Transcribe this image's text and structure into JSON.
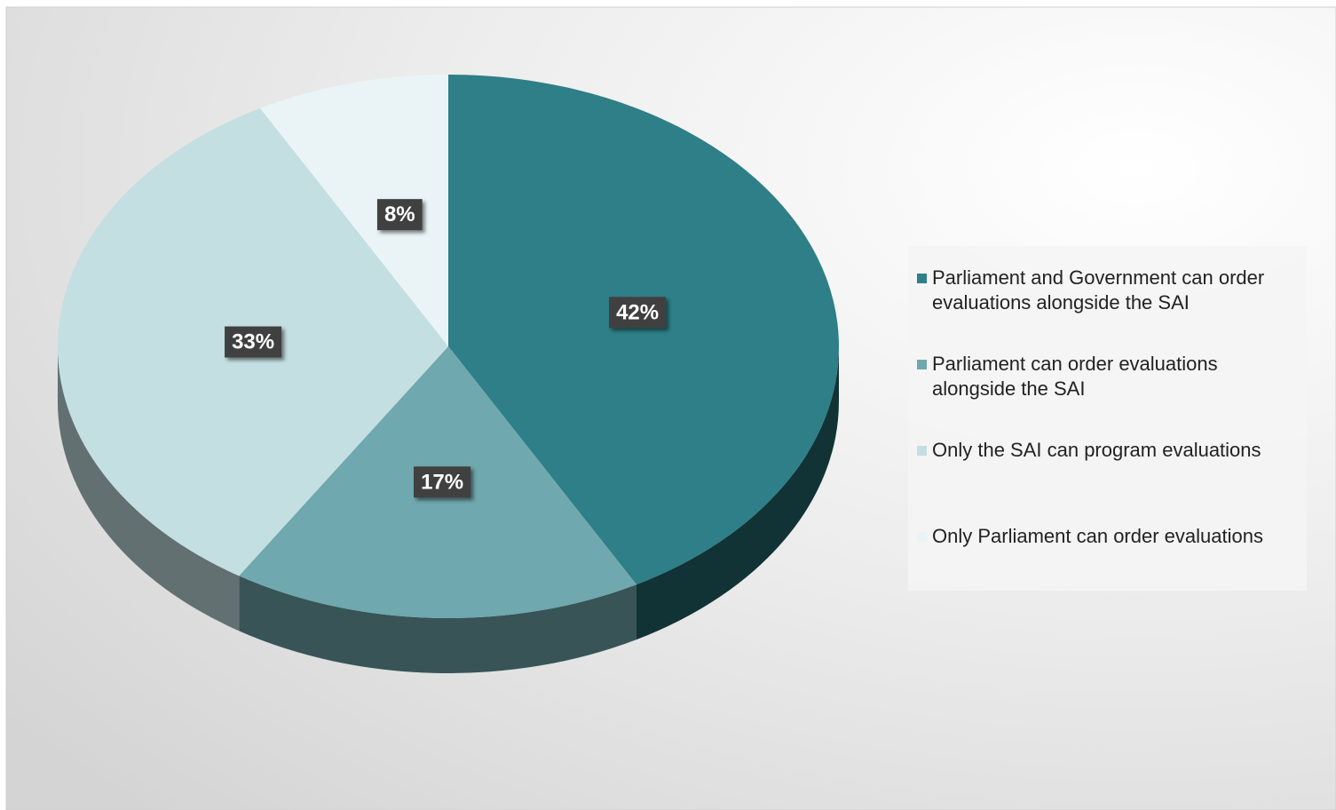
{
  "chart_data": {
    "type": "pie",
    "categories": [
      "Parliament and Government can order evaluations alongside the SAI",
      "Parliament can order evaluations alongside the SAI",
      "Only the SAI can program evaluations",
      "Only Parliament can order evaluations"
    ],
    "values": [
      42,
      17,
      33,
      8
    ],
    "value_labels": [
      "42%",
      "17%",
      "33%",
      "8%"
    ],
    "colors": [
      "#2e7f87",
      "#6fa8ae",
      "#c4dfe1",
      "#eaf4f6"
    ],
    "legend": "right"
  }
}
